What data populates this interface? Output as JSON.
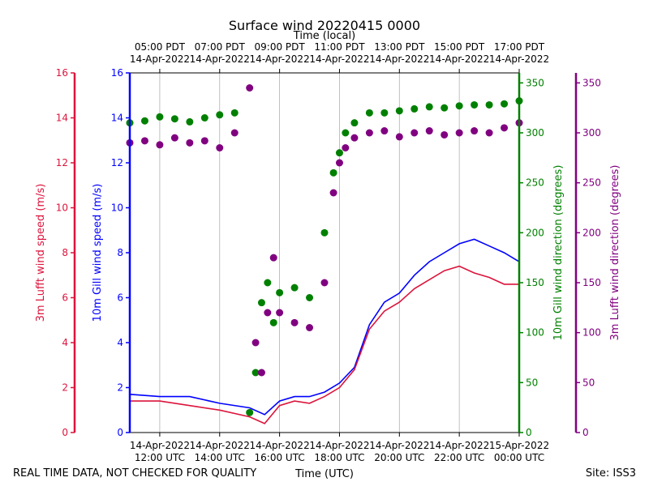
{
  "chart_data": {
    "type": "scatter",
    "title": "Surface wind 20220415 0000",
    "top_axis_label": "Time (local)",
    "xlabel": "Time (UTC)",
    "footer_left": "REAL TIME DATA, NOT CHECKED FOR QUALITY",
    "footer_right": "Site: ISS3",
    "x_range_hours_utc": [
      11,
      24
    ],
    "x_ticks": [
      {
        "hour": 12,
        "utc_date": "14-Apr-2022",
        "utc_time": "12:00 UTC",
        "local_time": "05:00 PDT",
        "local_date": "14-Apr-2022"
      },
      {
        "hour": 14,
        "utc_date": "14-Apr-2022",
        "utc_time": "14:00 UTC",
        "local_time": "07:00 PDT",
        "local_date": "14-Apr-2022"
      },
      {
        "hour": 16,
        "utc_date": "14-Apr-2022",
        "utc_time": "16:00 UTC",
        "local_time": "09:00 PDT",
        "local_date": "14-Apr-2022"
      },
      {
        "hour": 18,
        "utc_date": "14-Apr-2022",
        "utc_time": "18:00 UTC",
        "local_time": "11:00 PDT",
        "local_date": "14-Apr-2022"
      },
      {
        "hour": 20,
        "utc_date": "14-Apr-2022",
        "utc_time": "20:00 UTC",
        "local_time": "13:00 PDT",
        "local_date": "14-Apr-2022"
      },
      {
        "hour": 22,
        "utc_date": "14-Apr-2022",
        "utc_time": "22:00 UTC",
        "local_time": "15:00 PDT",
        "local_date": "14-Apr-2022"
      },
      {
        "hour": 24,
        "utc_date": "15-Apr-2022",
        "utc_time": "00:00 UTC",
        "local_time": "17:00 PDT",
        "local_date": "14-Apr-2022"
      }
    ],
    "axes": {
      "lufft_speed": {
        "label": "3m Lufft wind speed (m/s)",
        "color": "#dc143c",
        "ylim": [
          0,
          16
        ],
        "ticks": [
          0,
          2,
          4,
          6,
          8,
          10,
          12,
          14,
          16
        ]
      },
      "gill_speed": {
        "label": "10m Gill wind speed (m/s)",
        "color": "#0000ff",
        "ylim": [
          0,
          16
        ],
        "ticks": [
          0,
          2,
          4,
          6,
          8,
          10,
          12,
          14,
          16
        ]
      },
      "gill_dir": {
        "label": "10m Gill wind direction (degrees)",
        "color": "#008000",
        "ylim": [
          0,
          360
        ],
        "ticks": [
          0,
          50,
          100,
          150,
          200,
          250,
          300,
          350
        ]
      },
      "lufft_dir": {
        "label": "3m Lufft wind direction (degrees)",
        "color": "#800080",
        "ylim": [
          0,
          360
        ],
        "ticks": [
          0,
          50,
          100,
          150,
          200,
          250,
          300,
          350
        ]
      }
    },
    "series": [
      {
        "name": "10m Gill wind speed",
        "kind": "line",
        "axis": "gill_speed",
        "color": "#0000ff",
        "x": [
          11,
          12,
          13,
          14,
          15,
          15.5,
          16,
          16.5,
          17,
          17.5,
          18,
          18.5,
          19,
          19.5,
          20,
          20.5,
          21,
          21.5,
          22,
          22.5,
          23,
          23.5,
          24
        ],
        "values": [
          1.7,
          1.6,
          1.6,
          1.3,
          1.1,
          0.8,
          1.4,
          1.6,
          1.6,
          1.8,
          2.2,
          2.9,
          4.8,
          5.8,
          6.2,
          7.0,
          7.6,
          8.0,
          8.4,
          8.6,
          8.3,
          8.0,
          7.6
        ]
      },
      {
        "name": "3m Lufft wind speed",
        "kind": "line",
        "axis": "lufft_speed",
        "color": "#dc143c",
        "x": [
          11,
          12,
          13,
          14,
          15,
          15.5,
          16,
          16.5,
          17,
          17.5,
          18,
          18.5,
          19,
          19.5,
          20,
          20.5,
          21,
          21.5,
          22,
          22.5,
          23,
          23.5,
          24
        ],
        "values": [
          1.4,
          1.4,
          1.2,
          1.0,
          0.7,
          0.4,
          1.2,
          1.4,
          1.3,
          1.6,
          2.0,
          2.8,
          4.6,
          5.4,
          5.8,
          6.4,
          6.8,
          7.2,
          7.4,
          7.1,
          6.9,
          6.6,
          6.6
        ]
      },
      {
        "name": "10m Gill wind direction",
        "kind": "scatter",
        "axis": "gill_dir",
        "color": "#008000",
        "x": [
          11,
          11.5,
          12,
          12.5,
          13,
          13.5,
          14,
          14.5,
          15,
          15.2,
          15.4,
          15.6,
          15.8,
          16,
          16.5,
          17,
          17.5,
          17.8,
          18,
          18.2,
          18.5,
          19,
          19.5,
          20,
          20.5,
          21,
          21.5,
          22,
          22.5,
          23,
          23.5,
          24
        ],
        "values": [
          310,
          312,
          316,
          314,
          311,
          315,
          318,
          320,
          20,
          60,
          130,
          150,
          110,
          140,
          145,
          135,
          200,
          260,
          280,
          300,
          310,
          320,
          320,
          322,
          324,
          326,
          325,
          327,
          328,
          328,
          329,
          332
        ]
      },
      {
        "name": "3m Lufft wind direction",
        "kind": "scatter",
        "axis": "lufft_dir",
        "color": "#800080",
        "x": [
          11,
          11.5,
          12,
          12.5,
          13,
          13.5,
          14,
          14.5,
          15,
          15.2,
          15.4,
          15.6,
          15.8,
          16,
          16.5,
          17,
          17.5,
          17.8,
          18,
          18.2,
          18.5,
          19,
          19.5,
          20,
          20.5,
          21,
          21.5,
          22,
          22.5,
          23,
          23.5,
          24
        ],
        "values": [
          290,
          292,
          288,
          295,
          290,
          292,
          285,
          300,
          345,
          90,
          60,
          120,
          175,
          120,
          110,
          105,
          150,
          240,
          270,
          285,
          295,
          300,
          302,
          296,
          300,
          302,
          298,
          300,
          302,
          300,
          305,
          310
        ]
      }
    ]
  }
}
